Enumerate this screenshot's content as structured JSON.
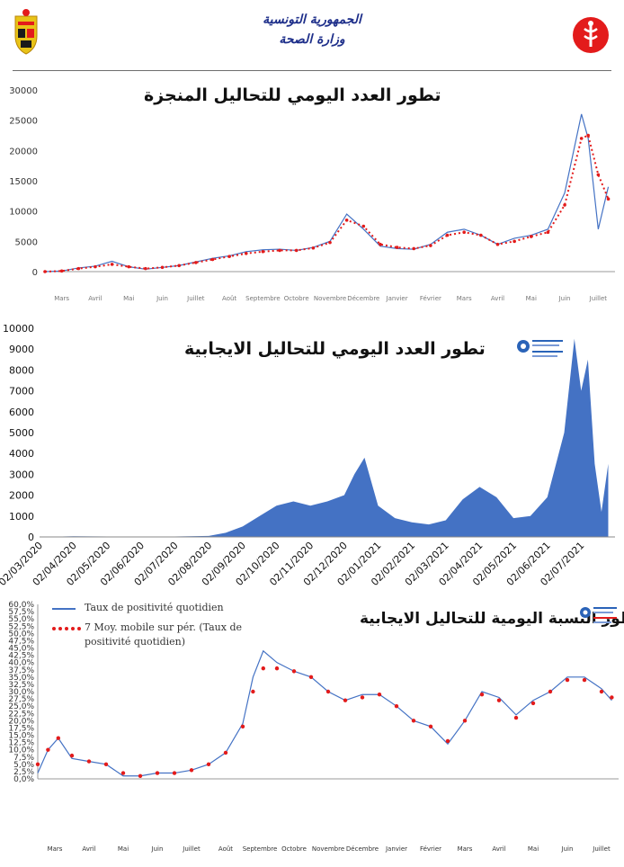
{
  "header": {
    "republic": "الجمهورية التونسية",
    "ministry": "وزارة الصحة"
  },
  "colors": {
    "series_blue": "#4472c4",
    "moving_avg_red": "#e31b1b",
    "area_fill": "#4472c4",
    "title_navy": "#1e2f8a"
  },
  "chart_data": [
    {
      "type": "line",
      "title": "تطور العدد اليومي للتحاليل المنجزة",
      "ylim": [
        0,
        30000
      ],
      "y_ticks": [
        "0",
        "5000",
        "10000",
        "15000",
        "20000",
        "25000",
        "30000"
      ],
      "x_month_labels": [
        "Mars",
        "Avril",
        "Mai",
        "Juin",
        "Juillet",
        "Août",
        "Septembre",
        "Octobre",
        "Novembre",
        "Décembre",
        "Janvier",
        "Février",
        "Mars",
        "Avril",
        "Mai",
        "Juin",
        "Juillet"
      ],
      "grid": false,
      "series": [
        {
          "name": "",
          "style": "blue-line",
          "x_months": [
            0,
            0.5,
            1,
            1.5,
            2,
            2.5,
            3,
            3.5,
            4,
            4.5,
            5,
            5.5,
            6,
            6.5,
            7,
            7.5,
            8,
            8.5,
            9,
            9.5,
            10,
            10.5,
            11,
            11.5,
            12,
            12.5,
            13,
            13.5,
            14,
            14.5,
            15,
            15.5,
            16,
            16.2,
            16.5,
            16.8
          ],
          "values": [
            0,
            100,
            600,
            900,
            1700,
            800,
            400,
            700,
            1000,
            1600,
            2200,
            2600,
            3300,
            3600,
            3700,
            3500,
            4000,
            5000,
            9500,
            7000,
            4200,
            3800,
            3700,
            4500,
            6500,
            7000,
            6000,
            4500,
            5500,
            6000,
            7000,
            13000,
            26000,
            22000,
            7000,
            14000
          ]
        },
        {
          "name": "",
          "style": "red-dotted",
          "x_months": [
            0,
            0.5,
            1,
            1.5,
            2,
            2.5,
            3,
            3.5,
            4,
            4.5,
            5,
            5.5,
            6,
            6.5,
            7,
            7.5,
            8,
            8.5,
            9,
            9.5,
            10,
            10.5,
            11,
            11.5,
            12,
            12.5,
            13,
            13.5,
            14,
            14.5,
            15,
            15.5,
            16,
            16.2,
            16.5,
            16.8
          ],
          "values": [
            0,
            100,
            500,
            800,
            1200,
            800,
            500,
            700,
            1000,
            1500,
            2000,
            2500,
            3000,
            3300,
            3500,
            3500,
            3900,
            4800,
            8500,
            7500,
            4500,
            4000,
            3800,
            4300,
            6000,
            6500,
            6000,
            4500,
            5000,
            5800,
            6500,
            11000,
            22000,
            22500,
            16000,
            12000
          ]
        }
      ]
    },
    {
      "type": "area",
      "title": "تطور العدد اليومي للتحاليل الايجابية",
      "ylim": [
        0,
        10000
      ],
      "y_ticks": [
        "0",
        "1000",
        "2000",
        "3000",
        "4000",
        "5000",
        "6000",
        "7000",
        "8000",
        "9000",
        "10000"
      ],
      "x_ticks": [
        "02/03/2020",
        "02/04/2020",
        "02/05/2020",
        "02/06/2020",
        "02/07/2020",
        "02/08/2020",
        "02/09/2020",
        "02/10/2020",
        "02/11/2020",
        "02/12/2020",
        "02/01/2021",
        "02/02/2021",
        "02/03/2021",
        "02/04/2021",
        "02/05/2021",
        "02/06/2021",
        "02/07/2021"
      ],
      "series": [
        {
          "name": "",
          "x_months": [
            0,
            1,
            2,
            3,
            4,
            5,
            5.5,
            6,
            6.5,
            7,
            7.5,
            8,
            8.5,
            9,
            9.3,
            9.6,
            10,
            10.5,
            11,
            11.5,
            12,
            12.5,
            13,
            13.5,
            14,
            14.5,
            15,
            15.5,
            15.8,
            16,
            16.2,
            16.4,
            16.6,
            16.8
          ],
          "values": [
            0,
            30,
            20,
            10,
            20,
            50,
            200,
            500,
            1000,
            1500,
            1700,
            1500,
            1700,
            2000,
            3000,
            3800,
            1500,
            900,
            700,
            600,
            800,
            1800,
            2400,
            1900,
            900,
            1000,
            1900,
            5000,
            9500,
            7000,
            8500,
            3500,
            1200,
            3500
          ]
        }
      ]
    },
    {
      "type": "line",
      "title": "تطور النسبة اليومية للتحاليل الايجابية",
      "ylim": [
        0,
        60
      ],
      "y_ticks": [
        "0,0%",
        "2,5%",
        "5,0%",
        "7,5%",
        "10,0%",
        "12,5%",
        "15,0%",
        "17,5%",
        "20,0%",
        "22,5%",
        "25,0%",
        "27,5%",
        "30,0%",
        "32,5%",
        "35,0%",
        "37,5%",
        "40,0%",
        "42,5%",
        "45,0%",
        "47,5%",
        "50,0%",
        "52,5%",
        "55,0%",
        "57,5%",
        "60,0%"
      ],
      "x_month_labels": [
        "Mars",
        "Avril",
        "Mai",
        "Juin",
        "Juillet",
        "Août",
        "Septembre",
        "Octobre",
        "Novembre",
        "Décembre",
        "Janvier",
        "Février",
        "Mars",
        "Avril",
        "Mai",
        "Juin",
        "Juillet"
      ],
      "legend": {
        "line_label": "Taux de positivité quotidien",
        "ma_label": "7 Moy. mobile sur pér. (Taux de positivité quotidien)"
      },
      "series": [
        {
          "name": "Taux de positivité quotidien",
          "x_months": [
            0,
            0.3,
            0.6,
            1,
            1.5,
            2,
            2.5,
            3,
            3.5,
            4,
            4.5,
            5,
            5.5,
            6,
            6.3,
            6.6,
            7,
            7.5,
            8,
            8.5,
            9,
            9.5,
            10,
            10.5,
            11,
            11.5,
            12,
            12.5,
            13,
            13.5,
            14,
            14.5,
            15,
            15.5,
            16,
            16.5,
            16.8
          ],
          "values": [
            2,
            10,
            14,
            7,
            6,
            5,
            1,
            1,
            2,
            2,
            3,
            5,
            9,
            19,
            35,
            44,
            40,
            37,
            35,
            30,
            27,
            29,
            29,
            25,
            20,
            18,
            12,
            20,
            30,
            28,
            22,
            27,
            30,
            35,
            35,
            31,
            27
          ]
        },
        {
          "name": "7 Moy. mobile sur pér. (Taux de positivité quotidien)",
          "x_months": [
            0,
            0.3,
            0.6,
            1,
            1.5,
            2,
            2.5,
            3,
            3.5,
            4,
            4.5,
            5,
            5.5,
            6,
            6.3,
            6.6,
            7,
            7.5,
            8,
            8.5,
            9,
            9.5,
            10,
            10.5,
            11,
            11.5,
            12,
            12.5,
            13,
            13.5,
            14,
            14.5,
            15,
            15.5,
            16,
            16.5,
            16.8
          ],
          "values": [
            5,
            10,
            14,
            8,
            6,
            5,
            2,
            1,
            2,
            2,
            3,
            5,
            9,
            18,
            30,
            38,
            38,
            37,
            35,
            30,
            27,
            28,
            29,
            25,
            20,
            18,
            13,
            20,
            29,
            27,
            21,
            26,
            30,
            34,
            34,
            30,
            28
          ]
        }
      ]
    }
  ]
}
